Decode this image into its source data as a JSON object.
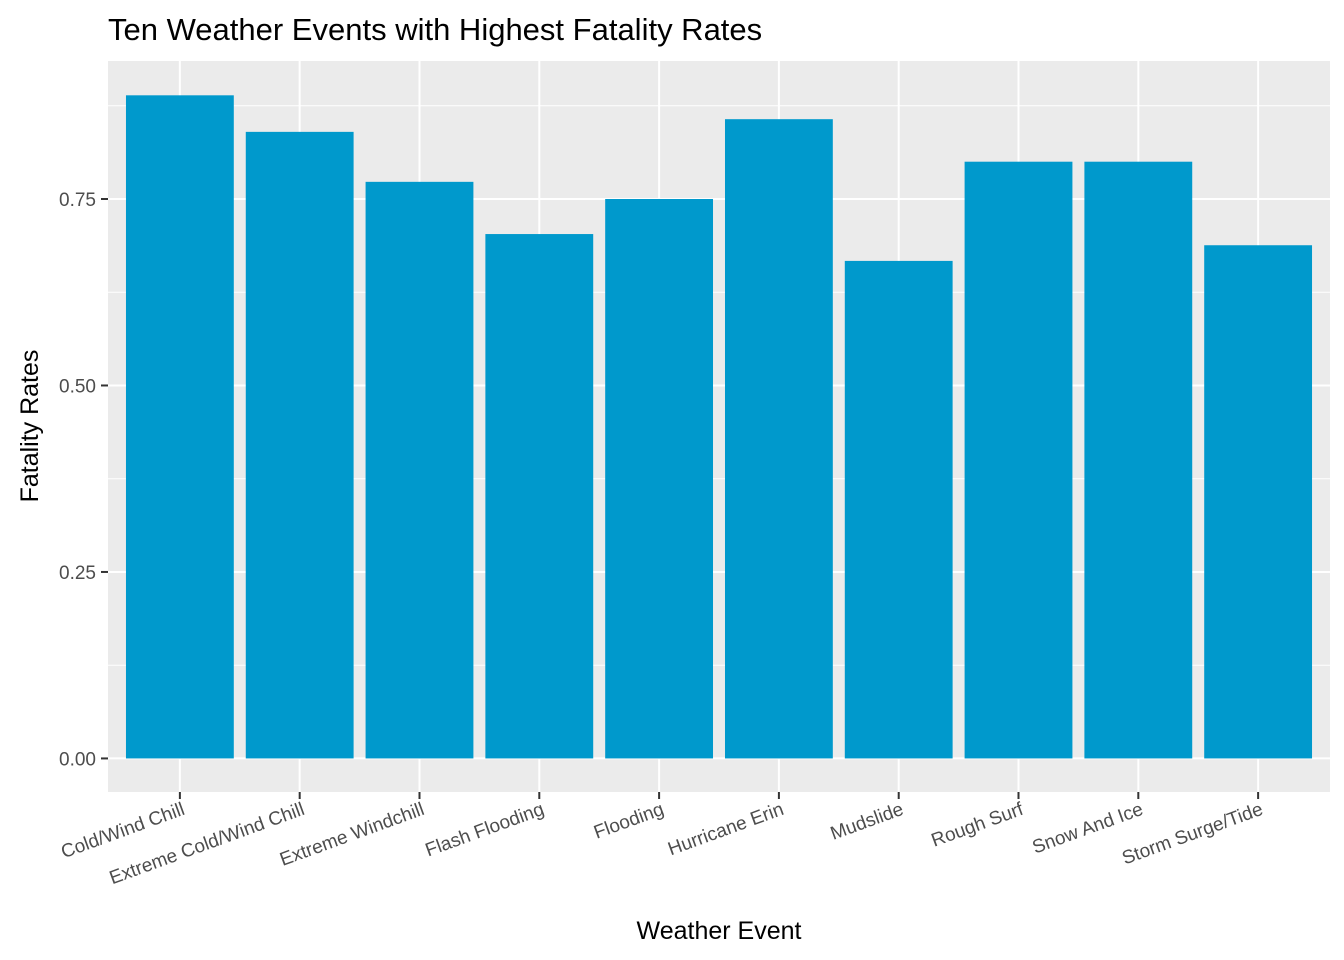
{
  "chart_data": {
    "type": "bar",
    "title": "Ten Weather Events with Highest Fatality Rates",
    "xlabel": "Weather Event",
    "ylabel": "Fatality Rates",
    "categories": [
      "Cold/Wind Chill",
      "Extreme Cold/Wind Chill",
      "Extreme Windchill",
      "Flash Flooding",
      "Flooding",
      "Hurricane Erin",
      "Mudslide",
      "Rough Surf",
      "Snow And Ice",
      "Storm Surge/Tide"
    ],
    "values": [
      0.889,
      0.84,
      0.773,
      0.703,
      0.75,
      0.857,
      0.667,
      0.8,
      0.8,
      0.688
    ],
    "ylim": [
      -0.045,
      0.935
    ],
    "yticks": [
      0.0,
      0.25,
      0.5,
      0.75
    ],
    "ytick_labels": [
      "0.00",
      "0.25",
      "0.50",
      "0.75"
    ],
    "bar_color": "#0099cc",
    "panel_background": "#ebebeb",
    "grid": true,
    "legend": "none"
  }
}
